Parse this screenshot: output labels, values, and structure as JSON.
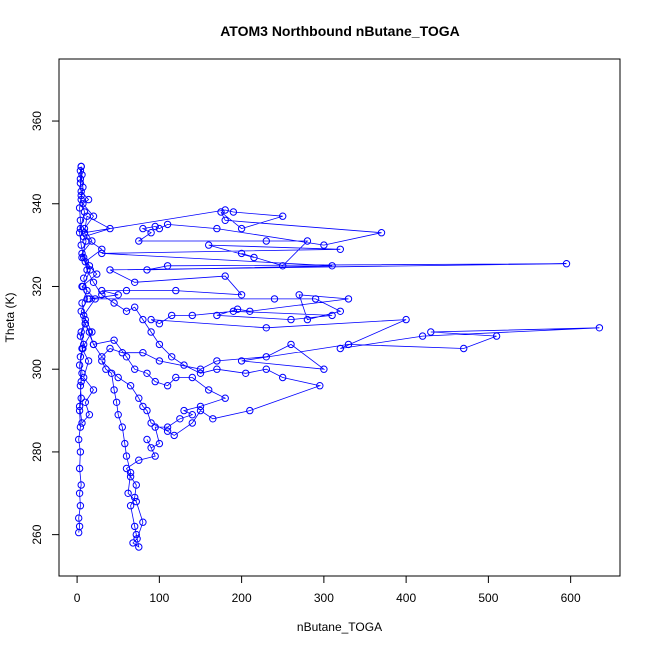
{
  "chart_data": {
    "type": "line",
    "title": "ATOM3 Northbound nButane_TOGA",
    "xlabel": "nButane_TOGA",
    "ylabel": "Theta (K)",
    "xlim": [
      -22,
      660
    ],
    "ylim": [
      250,
      375
    ],
    "xticks": [
      0,
      100,
      200,
      300,
      400,
      500,
      600
    ],
    "yticks": [
      260,
      280,
      300,
      320,
      340,
      360
    ],
    "xtick_labels": [
      "0",
      "100",
      "200",
      "300",
      "400",
      "500",
      "600"
    ],
    "ytick_labels": [
      "260",
      "280",
      "300",
      "320",
      "340",
      "360"
    ],
    "grid": false,
    "series_color": "#0000ff",
    "marker": "open-circle",
    "series": [
      {
        "name": "nButane_TOGA vs Theta",
        "points": [
          [
            2,
            260.5
          ],
          [
            3,
            262
          ],
          [
            2,
            264
          ],
          [
            4,
            267
          ],
          [
            3,
            270
          ],
          [
            5,
            272
          ],
          [
            3,
            276
          ],
          [
            4,
            280
          ],
          [
            2,
            283
          ],
          [
            4,
            286
          ],
          [
            3,
            290
          ],
          [
            5,
            293
          ],
          [
            4,
            296
          ],
          [
            6,
            299
          ],
          [
            4,
            303
          ],
          [
            8,
            306
          ],
          [
            5,
            309
          ],
          [
            10,
            312
          ],
          [
            6,
            316
          ],
          [
            12,
            319
          ],
          [
            8,
            322
          ],
          [
            15,
            325
          ],
          [
            6,
            328
          ],
          [
            18,
            331
          ],
          [
            9,
            334
          ],
          [
            20,
            337
          ],
          [
            7,
            340
          ],
          [
            14,
            341
          ],
          [
            5,
            343
          ],
          [
            4,
            345
          ],
          [
            6,
            347
          ],
          [
            5,
            349
          ],
          [
            4,
            348
          ],
          [
            7,
            344
          ],
          [
            5,
            341
          ],
          [
            9,
            338
          ],
          [
            4,
            334
          ],
          [
            11,
            331
          ],
          [
            6,
            327
          ],
          [
            16,
            324
          ],
          [
            7,
            320
          ],
          [
            22,
            317
          ],
          [
            8,
            313
          ],
          [
            18,
            309
          ],
          [
            6,
            305
          ],
          [
            14,
            302
          ],
          [
            8,
            298
          ],
          [
            20,
            295
          ],
          [
            10,
            292
          ],
          [
            15,
            289
          ],
          [
            6,
            287
          ],
          [
            3,
            291
          ],
          [
            5,
            297
          ],
          [
            3,
            301
          ],
          [
            7,
            305
          ],
          [
            4,
            308
          ],
          [
            10,
            311
          ],
          [
            5,
            314
          ],
          [
            13,
            317
          ],
          [
            6,
            320
          ],
          [
            24,
            323
          ],
          [
            10,
            326
          ],
          [
            30,
            329
          ],
          [
            8,
            332
          ],
          [
            40,
            334
          ],
          [
            12,
            337
          ],
          [
            9,
            333
          ],
          [
            180,
            338.5
          ],
          [
            190,
            338
          ],
          [
            250,
            337
          ],
          [
            200,
            334
          ],
          [
            175,
            338
          ],
          [
            180,
            336
          ],
          [
            370,
            333
          ],
          [
            300,
            330
          ],
          [
            170,
            334
          ],
          [
            110,
            335
          ],
          [
            100,
            334
          ],
          [
            95,
            334.5
          ],
          [
            80,
            334
          ],
          [
            90,
            333
          ],
          [
            75,
            331
          ],
          [
            230,
            331
          ],
          [
            280,
            331
          ],
          [
            250,
            325
          ],
          [
            200,
            328
          ],
          [
            215,
            327
          ],
          [
            160,
            330
          ],
          [
            320,
            329
          ],
          [
            30,
            328
          ],
          [
            310,
            325
          ],
          [
            85,
            324
          ],
          [
            110,
            325
          ],
          [
            595,
            325.5
          ],
          [
            40,
            324
          ],
          [
            70,
            321
          ],
          [
            180,
            322.5
          ],
          [
            200,
            318
          ],
          [
            120,
            319
          ],
          [
            60,
            319
          ],
          [
            30,
            319
          ],
          [
            50,
            318
          ],
          [
            15,
            317
          ],
          [
            240,
            317
          ],
          [
            290,
            317
          ],
          [
            320,
            314
          ],
          [
            280,
            312
          ],
          [
            270,
            318
          ],
          [
            330,
            317
          ],
          [
            210,
            314
          ],
          [
            195,
            314.5
          ],
          [
            170,
            313
          ],
          [
            260,
            312
          ],
          [
            310,
            313
          ],
          [
            190,
            314
          ],
          [
            140,
            313
          ],
          [
            115,
            313
          ],
          [
            100,
            311
          ],
          [
            90,
            312
          ],
          [
            230,
            310
          ],
          [
            400,
            312
          ],
          [
            320,
            305
          ],
          [
            420,
            308
          ],
          [
            635,
            310
          ],
          [
            430,
            309
          ],
          [
            510,
            308
          ],
          [
            470,
            305
          ],
          [
            330,
            306
          ],
          [
            200,
            302
          ],
          [
            300,
            300
          ],
          [
            260,
            306
          ],
          [
            230,
            303
          ],
          [
            170,
            302
          ],
          [
            150,
            300
          ],
          [
            100,
            302
          ],
          [
            80,
            304
          ],
          [
            55,
            304
          ],
          [
            40,
            305
          ],
          [
            30,
            303
          ],
          [
            20,
            306
          ],
          [
            15,
            309
          ],
          [
            10,
            311
          ],
          [
            20,
            306
          ],
          [
            45,
            307
          ],
          [
            60,
            303
          ],
          [
            70,
            300
          ],
          [
            85,
            299
          ],
          [
            95,
            297
          ],
          [
            110,
            296
          ],
          [
            120,
            298
          ],
          [
            140,
            298
          ],
          [
            160,
            295
          ],
          [
            180,
            293
          ],
          [
            150,
            291
          ],
          [
            130,
            290
          ],
          [
            140,
            289
          ],
          [
            125,
            288
          ],
          [
            110,
            286
          ],
          [
            95,
            286
          ],
          [
            100,
            282
          ],
          [
            90,
            281
          ],
          [
            85,
            283
          ],
          [
            95,
            279
          ],
          [
            75,
            278
          ],
          [
            60,
            276
          ],
          [
            65,
            274
          ],
          [
            72,
            272
          ],
          [
            70,
            269
          ],
          [
            65,
            267
          ],
          [
            70,
            262
          ],
          [
            72,
            260
          ],
          [
            75,
            257
          ],
          [
            68,
            258
          ],
          [
            73,
            259
          ],
          [
            80,
            263
          ],
          [
            72,
            268
          ],
          [
            62,
            270
          ],
          [
            65,
            275
          ],
          [
            60,
            279
          ],
          [
            58,
            282
          ],
          [
            55,
            286
          ],
          [
            50,
            289
          ],
          [
            48,
            292
          ],
          [
            45,
            295
          ],
          [
            42,
            299
          ],
          [
            35,
            300
          ],
          [
            30,
            302
          ],
          [
            50,
            298
          ],
          [
            65,
            296
          ],
          [
            75,
            293
          ],
          [
            80,
            291
          ],
          [
            85,
            290
          ],
          [
            90,
            287
          ],
          [
            110,
            285
          ],
          [
            118,
            284
          ],
          [
            140,
            287
          ],
          [
            150,
            290
          ],
          [
            165,
            288
          ],
          [
            210,
            290
          ],
          [
            295,
            296
          ],
          [
            250,
            298
          ],
          [
            230,
            300
          ],
          [
            205,
            299
          ],
          [
            170,
            300
          ],
          [
            150,
            299
          ],
          [
            130,
            301
          ],
          [
            115,
            303
          ],
          [
            100,
            306
          ],
          [
            90,
            309
          ],
          [
            80,
            312
          ],
          [
            70,
            315
          ],
          [
            60,
            314
          ],
          [
            45,
            316
          ],
          [
            30,
            318
          ],
          [
            20,
            321
          ],
          [
            12,
            324
          ],
          [
            8,
            327
          ],
          [
            5,
            330
          ],
          [
            3,
            333
          ],
          [
            4,
            336
          ],
          [
            3,
            339
          ],
          [
            5,
            342
          ],
          [
            4,
            346
          ],
          [
            5,
            349
          ]
        ]
      }
    ]
  }
}
